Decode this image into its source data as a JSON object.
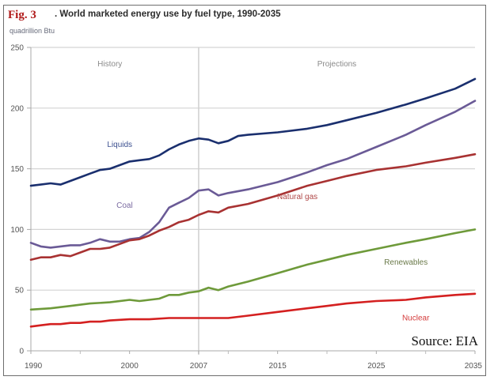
{
  "figure": {
    "fig_label": "Fig. 3",
    "title": ". World marketed energy use by fuel type, 1990-2035",
    "units": "quadrillion Btu",
    "source": "Source: EIA"
  },
  "chart_data": {
    "type": "line",
    "title": "World marketed energy use by fuel type, 1990-2035",
    "xlabel": "",
    "ylabel": "quadrillion Btu",
    "xlim": [
      1990,
      2035
    ],
    "ylim": [
      0,
      250
    ],
    "grid": true,
    "x_ticks": [
      1990,
      2000,
      2007,
      2015,
      2025,
      2035
    ],
    "x_minor_ticks": [
      1995,
      2010,
      2020,
      2030
    ],
    "y_ticks": [
      0,
      50,
      100,
      150,
      200,
      250
    ],
    "divider_year": 2007,
    "regions": [
      {
        "label": "History",
        "x_center": 1998
      },
      {
        "label": "Projections",
        "x_center": 2021
      }
    ],
    "series": [
      {
        "name": "Liquids",
        "color": "#1a2f6e",
        "label_color": "#3b4f8f",
        "label_pos": [
          1999,
          168
        ],
        "points": [
          [
            1990,
            136
          ],
          [
            1991,
            137
          ],
          [
            1992,
            138
          ],
          [
            1993,
            137
          ],
          [
            1994,
            140
          ],
          [
            1995,
            143
          ],
          [
            1996,
            146
          ],
          [
            1997,
            149
          ],
          [
            1998,
            150
          ],
          [
            1999,
            153
          ],
          [
            2000,
            156
          ],
          [
            2001,
            157
          ],
          [
            2002,
            158
          ],
          [
            2003,
            161
          ],
          [
            2004,
            166
          ],
          [
            2005,
            170
          ],
          [
            2006,
            173
          ],
          [
            2007,
            175
          ],
          [
            2008,
            174
          ],
          [
            2009,
            171
          ],
          [
            2010,
            173
          ],
          [
            2011,
            177
          ],
          [
            2012,
            178
          ],
          [
            2015,
            180
          ],
          [
            2018,
            183
          ],
          [
            2020,
            186
          ],
          [
            2022,
            190
          ],
          [
            2025,
            196
          ],
          [
            2028,
            203
          ],
          [
            2030,
            208
          ],
          [
            2033,
            216
          ],
          [
            2035,
            224
          ]
        ]
      },
      {
        "name": "Coal",
        "color": "#6a5a96",
        "label_color": "#7a6aa0",
        "label_pos": [
          1999.5,
          118
        ],
        "points": [
          [
            1990,
            89
          ],
          [
            1991,
            86
          ],
          [
            1992,
            85
          ],
          [
            1993,
            86
          ],
          [
            1994,
            87
          ],
          [
            1995,
            87
          ],
          [
            1996,
            89
          ],
          [
            1997,
            92
          ],
          [
            1998,
            90
          ],
          [
            1999,
            90
          ],
          [
            2000,
            92
          ],
          [
            2001,
            93
          ],
          [
            2002,
            98
          ],
          [
            2003,
            106
          ],
          [
            2004,
            118
          ],
          [
            2005,
            122
          ],
          [
            2006,
            126
          ],
          [
            2007,
            132
          ],
          [
            2008,
            133
          ],
          [
            2009,
            128
          ],
          [
            2010,
            130
          ],
          [
            2012,
            133
          ],
          [
            2015,
            139
          ],
          [
            2018,
            147
          ],
          [
            2020,
            153
          ],
          [
            2022,
            158
          ],
          [
            2025,
            168
          ],
          [
            2028,
            178
          ],
          [
            2030,
            186
          ],
          [
            2033,
            197
          ],
          [
            2035,
            206
          ]
        ]
      },
      {
        "name": "Natural gas",
        "color": "#a83232",
        "label_color": "#b04848",
        "label_pos": [
          2017,
          125
        ],
        "points": [
          [
            1990,
            75
          ],
          [
            1991,
            77
          ],
          [
            1992,
            77
          ],
          [
            1993,
            79
          ],
          [
            1994,
            78
          ],
          [
            1995,
            81
          ],
          [
            1996,
            84
          ],
          [
            1997,
            84
          ],
          [
            1998,
            85
          ],
          [
            1999,
            88
          ],
          [
            2000,
            91
          ],
          [
            2001,
            92
          ],
          [
            2002,
            95
          ],
          [
            2003,
            99
          ],
          [
            2004,
            102
          ],
          [
            2005,
            106
          ],
          [
            2006,
            108
          ],
          [
            2007,
            112
          ],
          [
            2008,
            115
          ],
          [
            2009,
            114
          ],
          [
            2010,
            118
          ],
          [
            2012,
            121
          ],
          [
            2015,
            128
          ],
          [
            2018,
            136
          ],
          [
            2020,
            140
          ],
          [
            2022,
            144
          ],
          [
            2025,
            149
          ],
          [
            2028,
            152
          ],
          [
            2030,
            155
          ],
          [
            2033,
            159
          ],
          [
            2035,
            162
          ]
        ]
      },
      {
        "name": "Renewables",
        "color": "#6e9a3a",
        "label_color": "#6b7a4a",
        "label_pos": [
          2028,
          71
        ],
        "points": [
          [
            1990,
            34
          ],
          [
            1992,
            35
          ],
          [
            1994,
            37
          ],
          [
            1996,
            39
          ],
          [
            1998,
            40
          ],
          [
            2000,
            42
          ],
          [
            2001,
            41
          ],
          [
            2002,
            42
          ],
          [
            2003,
            43
          ],
          [
            2004,
            46
          ],
          [
            2005,
            46
          ],
          [
            2006,
            48
          ],
          [
            2007,
            49
          ],
          [
            2008,
            52
          ],
          [
            2009,
            50
          ],
          [
            2010,
            53
          ],
          [
            2012,
            57
          ],
          [
            2015,
            64
          ],
          [
            2018,
            71
          ],
          [
            2020,
            75
          ],
          [
            2022,
            79
          ],
          [
            2025,
            84
          ],
          [
            2028,
            89
          ],
          [
            2030,
            92
          ],
          [
            2033,
            97
          ],
          [
            2035,
            100
          ]
        ]
      },
      {
        "name": "Nuclear",
        "color": "#d42020",
        "label_color": "#d43a3a",
        "label_pos": [
          2029,
          25
        ],
        "points": [
          [
            1990,
            20
          ],
          [
            1991,
            21
          ],
          [
            1992,
            22
          ],
          [
            1993,
            22
          ],
          [
            1994,
            23
          ],
          [
            1995,
            23
          ],
          [
            1996,
            24
          ],
          [
            1997,
            24
          ],
          [
            1998,
            25
          ],
          [
            2000,
            26
          ],
          [
            2002,
            26
          ],
          [
            2004,
            27
          ],
          [
            2006,
            27
          ],
          [
            2007,
            27
          ],
          [
            2008,
            27
          ],
          [
            2010,
            27
          ],
          [
            2012,
            29
          ],
          [
            2015,
            32
          ],
          [
            2018,
            35
          ],
          [
            2020,
            37
          ],
          [
            2022,
            39
          ],
          [
            2025,
            41
          ],
          [
            2028,
            42
          ],
          [
            2030,
            44
          ],
          [
            2033,
            46
          ],
          [
            2035,
            47
          ]
        ]
      }
    ]
  }
}
